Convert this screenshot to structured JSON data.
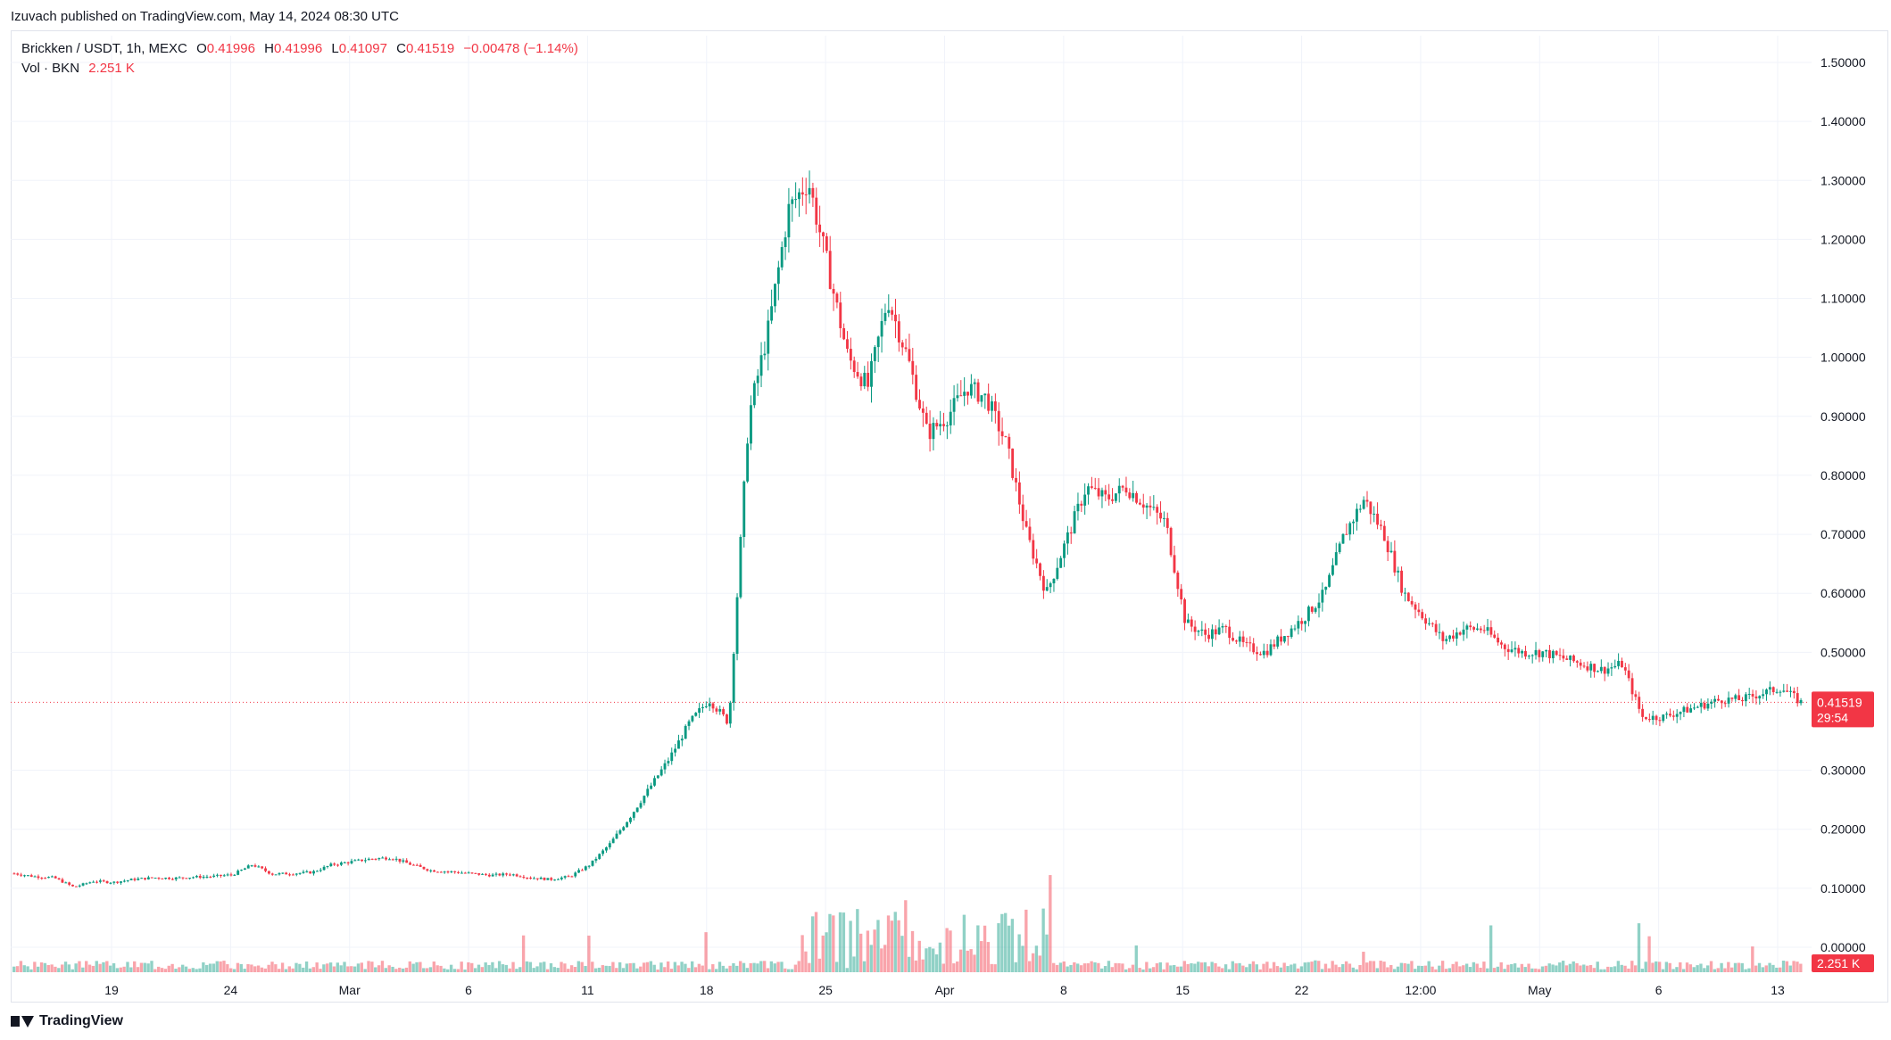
{
  "header": {
    "published": "Izuvach published on TradingView.com, May 14, 2024 08:30 UTC"
  },
  "legend": {
    "symbol": "Brickken / USDT, 1h, MEXC",
    "open_label": "O",
    "open": "0.41996",
    "high_label": "H",
    "high": "0.41996",
    "low_label": "L",
    "low": "0.41097",
    "close_label": "C",
    "close": "0.41519",
    "change": "−0.00478 (−1.14%)",
    "vol_label": "Vol · BKN",
    "vol_value": "2.251 K"
  },
  "footer": {
    "brand": "TradingView"
  },
  "colors": {
    "up": "#089981",
    "down": "#f23645",
    "grid": "#f0f3fa"
  },
  "chart_data": {
    "type": "candlestick",
    "x_ticks": [
      "19",
      "24",
      "Mar",
      "6",
      "11",
      "18",
      "25",
      "Apr",
      "8",
      "15",
      "22",
      "12:00",
      "May",
      "6",
      "13"
    ],
    "y_ticks": [
      "1.50000",
      "1.40000",
      "1.30000",
      "1.20000",
      "1.10000",
      "1.00000",
      "0.90000",
      "0.80000",
      "0.70000",
      "0.60000",
      "0.50000",
      "0.30000",
      "0.20000",
      "0.10000",
      "0.00000"
    ],
    "ylim": [
      0,
      1.5
    ],
    "last_price": "0.41519",
    "countdown": "29:54",
    "volume_label": "2.251 K",
    "series": [
      {
        "values": [
          0.125,
          0.12,
          0.118,
          0.102,
          0.112,
          0.11,
          0.115,
          0.118,
          0.117,
          0.119,
          0.12,
          0.123,
          0.14,
          0.124,
          0.125,
          0.127,
          0.14,
          0.145,
          0.15,
          0.152,
          0.14,
          0.13,
          0.128,
          0.125,
          0.122,
          0.124,
          0.118,
          0.115,
          0.12,
          0.14,
          0.175,
          0.22,
          0.27,
          0.32,
          0.38,
          0.42,
          0.38,
          0.9,
          1.05,
          1.25,
          1.3,
          1.15,
          1.0,
          0.95,
          1.1,
          1.0,
          0.87,
          0.9,
          0.95,
          0.93,
          0.85,
          0.7,
          0.6,
          0.69,
          0.78,
          0.76,
          0.78,
          0.75,
          0.72,
          0.55,
          0.53,
          0.54,
          0.51,
          0.5,
          0.53,
          0.56,
          0.6,
          0.7,
          0.76,
          0.7,
          0.6,
          0.56,
          0.52,
          0.54,
          0.54,
          0.51,
          0.5,
          0.5,
          0.49,
          0.48,
          0.47,
          0.48,
          0.39,
          0.39,
          0.4,
          0.41,
          0.42,
          0.42,
          0.43,
          0.44,
          0.415
        ]
      }
    ]
  }
}
